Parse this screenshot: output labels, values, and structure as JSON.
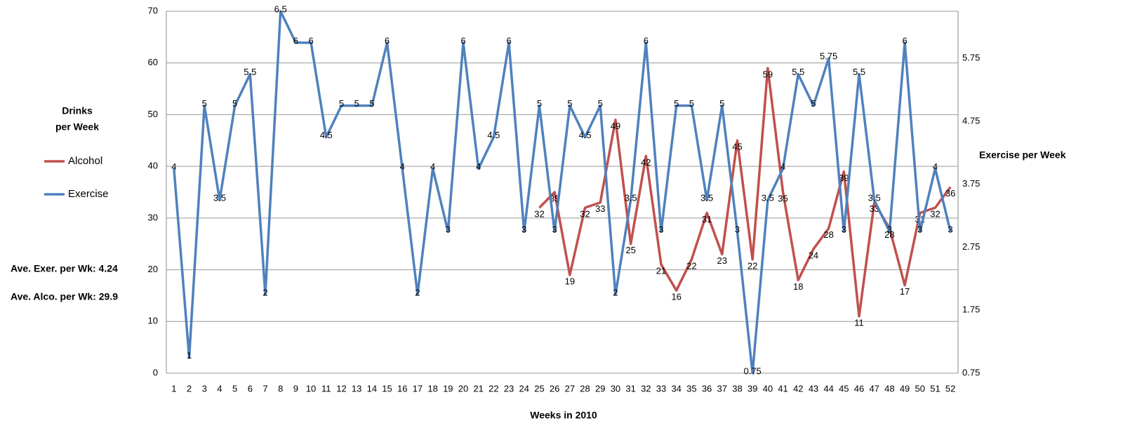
{
  "chart_data": {
    "type": "line",
    "ylabel_lines": [
      "Drinks",
      "per Week"
    ],
    "xlabel": "Weeks in 2010",
    "y2label": "Exercise per Week",
    "annotations": [
      "Ave. Exer. per Wk: 4.24",
      "Ave. Alco. per Wk: 29.9"
    ],
    "categories": [
      1,
      2,
      3,
      4,
      5,
      6,
      7,
      8,
      9,
      10,
      11,
      12,
      13,
      14,
      15,
      16,
      17,
      18,
      19,
      20,
      21,
      22,
      23,
      24,
      25,
      26,
      27,
      28,
      29,
      30,
      31,
      32,
      33,
      34,
      35,
      36,
      37,
      38,
      39,
      40,
      41,
      42,
      43,
      44,
      45,
      46,
      47,
      48,
      49,
      50,
      51,
      52
    ],
    "series": [
      {
        "name": "Alcohol",
        "color": "#c0504d",
        "axis": "y",
        "values": [
          null,
          null,
          null,
          null,
          null,
          null,
          null,
          null,
          null,
          null,
          null,
          null,
          null,
          null,
          null,
          null,
          null,
          null,
          null,
          null,
          null,
          null,
          null,
          null,
          32,
          35,
          19,
          32,
          33,
          49,
          25,
          42,
          21,
          16,
          22,
          31,
          23,
          45,
          22,
          59,
          35,
          18,
          24,
          28,
          39,
          11,
          33,
          28,
          17,
          31,
          32,
          36
        ]
      },
      {
        "name": "Exercise",
        "color": "#4f81bd",
        "axis": "y2",
        "values": [
          4,
          1,
          5,
          3.5,
          5,
          5.5,
          2,
          6.5,
          6,
          6,
          4.5,
          5,
          5,
          5,
          6,
          4,
          2,
          4,
          3,
          6,
          4,
          4.5,
          6,
          3,
          5,
          3,
          5,
          4.5,
          5,
          2,
          3.5,
          6,
          3,
          5,
          5,
          3.5,
          5,
          3,
          0.75,
          3.5,
          4,
          5.5,
          5,
          5.75,
          3,
          5.5,
          3.5,
          3,
          6,
          3,
          4,
          3
        ]
      }
    ],
    "ylim": [
      0,
      70
    ],
    "yticks": [
      0,
      10,
      20,
      30,
      40,
      50,
      60,
      70
    ],
    "y2lim": [
      0.75,
      6.5
    ],
    "y2ticks": [
      0.75,
      1.75,
      2.75,
      3.75,
      4.75,
      5.75
    ],
    "grid": true,
    "legend": "left"
  }
}
